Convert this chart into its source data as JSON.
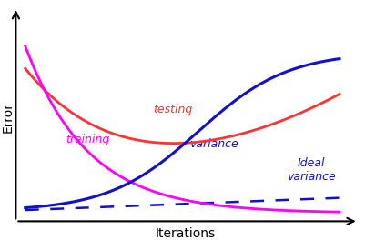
{
  "title": "",
  "xlabel": "Iterations",
  "ylabel": "Error",
  "background_color": "#ffffff",
  "training_color": "#ff00ff",
  "testing_color": "#ff3333",
  "variance_color": "#1111cc",
  "ideal_variance_color": "#1111cc",
  "label_training": "training",
  "label_testing": "testing",
  "label_variance": "variance",
  "label_ideal_variance": "Ideal\nvariance",
  "label_fontsize": 9,
  "axis_label_fontsize": 10
}
